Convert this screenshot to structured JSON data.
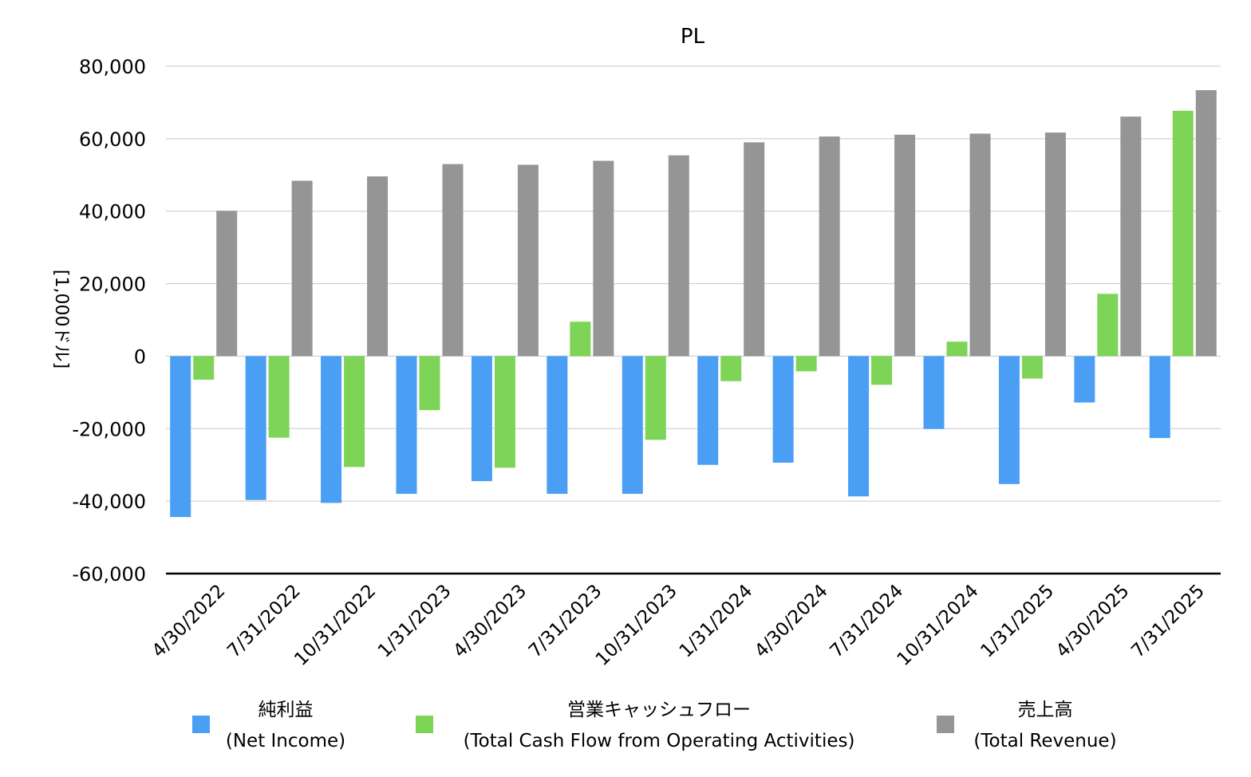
{
  "chart_data": {
    "type": "bar",
    "title": "PL",
    "ylabel": "[1,000ドル]",
    "ylim": [
      -60000,
      80000
    ],
    "yticks": [
      80000,
      60000,
      40000,
      20000,
      0,
      -20000,
      -40000,
      -60000
    ],
    "ytick_labels": [
      "80,000",
      "60,000",
      "40,000",
      "20,000",
      "0",
      "-20,000",
      "-40,000",
      "-60,000"
    ],
    "grid": true,
    "legend_position": "bottom",
    "categories": [
      "4/30/2022",
      "7/31/2022",
      "10/31/2022",
      "1/31/2023",
      "4/30/2023",
      "7/31/2023",
      "10/31/2023",
      "1/31/2024",
      "4/30/2024",
      "7/31/2024",
      "10/31/2024",
      "1/31/2025",
      "4/30/2025",
      "7/31/2025"
    ],
    "series": [
      {
        "name": "純利益",
        "name_en": "(Net Income)",
        "color": "#4a9ff5",
        "values": [
          -44400,
          -39700,
          -40500,
          -38000,
          -34500,
          -38000,
          -38000,
          -30000,
          -29400,
          -38700,
          -20100,
          -35300,
          -12800,
          -22600
        ]
      },
      {
        "name": "営業キャッシュフロー",
        "name_en": "(Total Cash Flow from Operating Activities)",
        "color": "#7ed457",
        "values": [
          -6500,
          -22500,
          -30600,
          -14900,
          -30800,
          9500,
          -23100,
          -6900,
          -4200,
          -7900,
          4000,
          -6200,
          17200,
          67700
        ]
      },
      {
        "name": "売上高",
        "name_en": "(Total Revenue)",
        "color": "#959595",
        "values": [
          40100,
          48400,
          49600,
          53000,
          52800,
          53900,
          55400,
          59000,
          60600,
          61100,
          61400,
          61700,
          66100,
          73400
        ]
      }
    ]
  }
}
